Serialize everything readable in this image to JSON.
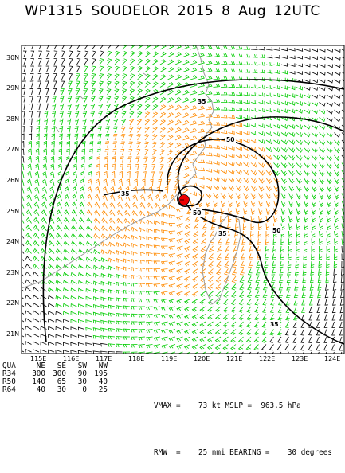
{
  "title": {
    "storm_id": "WP1315",
    "storm_name": "SOUDELOR 2015",
    "time": "8 Aug 12UTC"
  },
  "map": {
    "latitudes": [
      "30N",
      "29N",
      "28N",
      "27N",
      "26N",
      "25N",
      "24N",
      "23N",
      "22N",
      "21N"
    ],
    "longitudes": [
      "115E",
      "116E",
      "117E",
      "118E",
      "119E",
      "120E",
      "121E",
      "122E",
      "123E",
      "124E"
    ],
    "contour_labels": [
      "35",
      "35",
      "35",
      "35",
      "50",
      "50",
      "50"
    ],
    "colors": {
      "r34": "#000000",
      "r50": "#00cc00",
      "r64": "#ff8a00",
      "coast": "#9a9a9a",
      "center": "#ee0000",
      "contour": "#000000"
    },
    "center_marker": "storm-center-red-circle"
  },
  "table": {
    "headers": [
      "QUA",
      "NE",
      "SE",
      "SW",
      "NW"
    ],
    "rows": [
      {
        "label": "R34",
        "values": [
          "300",
          "300",
          "90",
          "195"
        ]
      },
      {
        "label": "R50",
        "values": [
          "140",
          "65",
          "30",
          "40"
        ]
      },
      {
        "label": "R64",
        "values": [
          "40",
          "30",
          "0",
          "25"
        ]
      }
    ]
  },
  "metrics": {
    "vmax_line": "VMAX =    73 kt MSLP =  963.5 hPa",
    "rmw_line": "RMW  =    25 nmi BEARING =    30 degrees"
  }
}
